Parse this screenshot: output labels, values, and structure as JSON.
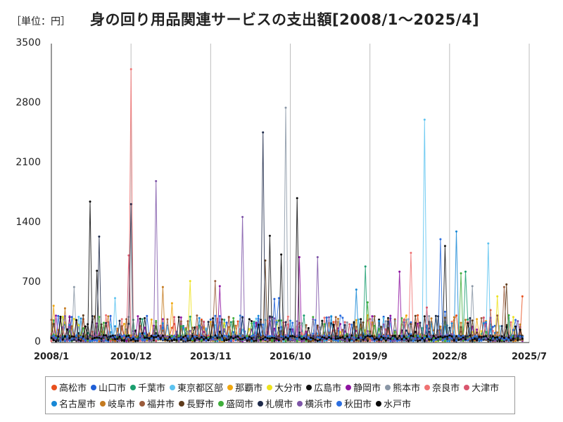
{
  "header": {
    "unit_label": "［単位：円］",
    "title": "身の回り用品関連サービスの支出額[2008/1～2025/4]"
  },
  "chart_data": {
    "type": "line",
    "title": "身の回り用品関連サービスの支出額[2008/1～2025/4]",
    "unit": "円",
    "x_range": [
      "2008/1",
      "2025/7"
    ],
    "x_tick_labels": [
      "2008/1",
      "2010/12",
      "2013/11",
      "2016/10",
      "2019/9",
      "2022/8",
      "2025/7"
    ],
    "y_ticks": [
      0,
      700,
      1400,
      2100,
      2800,
      3500
    ],
    "y_tick_labels": [
      "0",
      "700",
      "1400",
      "2100",
      "2800",
      "3500"
    ],
    "ylim": [
      0,
      3500
    ],
    "grid": "vertical",
    "legend_position": "bottom",
    "series": [
      {
        "name": "高松市",
        "color": "#e8501e",
        "peaks": [
          [
            "2018/5",
            240
          ],
          [
            "2024/2",
            380
          ],
          [
            "2025/4",
            540
          ]
        ]
      },
      {
        "name": "山口市",
        "color": "#1f5fd6",
        "peaks": [
          [
            "2016/3",
            510
          ],
          [
            "2022/6",
            360
          ]
        ]
      },
      {
        "name": "千葉市",
        "color": "#1a9e6e",
        "peaks": [
          [
            "2019/7",
            890
          ],
          [
            "2023/3",
            830
          ]
        ]
      },
      {
        "name": "東京都区部",
        "color": "#5cc3f0",
        "peaks": [
          [
            "2021/9",
            2610
          ],
          [
            "2024/1",
            1160
          ],
          [
            "2010/5",
            520
          ]
        ]
      },
      {
        "name": "那覇市",
        "color": "#f0a70f",
        "peaks": [
          [
            "2008/2",
            430
          ],
          [
            "2012/6",
            460
          ]
        ]
      },
      {
        "name": "大分市",
        "color": "#ede21c",
        "peaks": [
          [
            "2013/2",
            720
          ],
          [
            "2024/5",
            540
          ]
        ]
      },
      {
        "name": "広島市",
        "color": "#111111",
        "peaks": [
          [
            "2009/9",
            840
          ],
          [
            "2016/1",
            1250
          ],
          [
            "2022/6",
            1130
          ]
        ]
      },
      {
        "name": "静岡市",
        "color": "#8e13a0",
        "peaks": [
          [
            "2017/2",
            1000
          ],
          [
            "2020/10",
            830
          ],
          [
            "2014/3",
            660
          ]
        ]
      },
      {
        "name": "熊本市",
        "color": "#8a97a6",
        "peaks": [
          [
            "2016/8",
            2750
          ],
          [
            "2008/11",
            650
          ],
          [
            "2023/6",
            660
          ]
        ]
      },
      {
        "name": "奈良市",
        "color": "#f07272",
        "peaks": [
          [
            "2010/12",
            3200
          ],
          [
            "2021/3",
            1050
          ]
        ]
      },
      {
        "name": "大津市",
        "color": "#d9566e",
        "peaks": [
          [
            "2010/11",
            1020
          ],
          [
            "2021/10",
            410
          ]
        ]
      },
      {
        "name": "名古屋市",
        "color": "#1788d6",
        "peaks": [
          [
            "2022/11",
            1300
          ],
          [
            "2019/3",
            620
          ]
        ]
      },
      {
        "name": "岐阜市",
        "color": "#c47a1f",
        "peaks": [
          [
            "2012/2",
            650
          ],
          [
            "2008/7",
            400
          ]
        ]
      },
      {
        "name": "福井市",
        "color": "#9a5b3a",
        "peaks": [
          [
            "2014/1",
            720
          ],
          [
            "2024/8",
            650
          ]
        ]
      },
      {
        "name": "長野市",
        "color": "#5e3b1b",
        "peaks": [
          [
            "2015/11",
            960
          ],
          [
            "2024/9",
            680
          ]
        ]
      },
      {
        "name": "盛岡市",
        "color": "#3fae3b",
        "peaks": [
          [
            "2019/8",
            470
          ],
          [
            "2023/1",
            810
          ]
        ]
      },
      {
        "name": "札幌市",
        "color": "#1e2a4a",
        "peaks": [
          [
            "2015/10",
            2460
          ],
          [
            "2010/12",
            1620
          ],
          [
            "2009/10",
            1240
          ]
        ]
      },
      {
        "name": "横浜市",
        "color": "#7e55a8",
        "peaks": [
          [
            "2011/11",
            1890
          ],
          [
            "2015/1",
            1470
          ],
          [
            "2017/10",
            1000
          ]
        ]
      },
      {
        "name": "秋田市",
        "color": "#2b6ee0",
        "peaks": [
          [
            "2022/4",
            1210
          ],
          [
            "2016/5",
            520
          ]
        ]
      },
      {
        "name": "水戸市",
        "color": "#080808",
        "peaks": [
          [
            "2009/6",
            1650
          ],
          [
            "2017/1",
            1690
          ],
          [
            "2016/6",
            1030
          ]
        ]
      }
    ]
  }
}
